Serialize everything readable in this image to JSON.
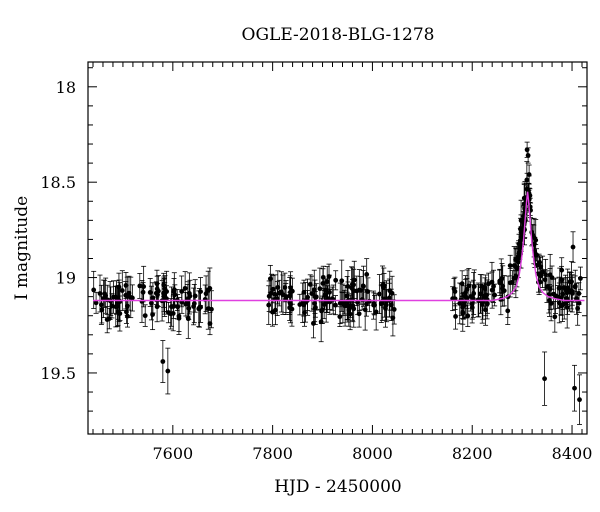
{
  "chart_data": {
    "type": "scatter",
    "title": "OGLE-2018-BLG-1278",
    "xlabel": "HJD - 2450000",
    "ylabel": "I magnitude",
    "xlim": [
      7430,
      8430
    ],
    "ylim": [
      19.82,
      17.87
    ],
    "y_inverted": true,
    "x_ticks": [
      7600,
      7800,
      8000,
      8200,
      8400
    ],
    "x_tick_labels": [
      "7600",
      "7800",
      "8000",
      "8200",
      "8400"
    ],
    "y_ticks": [
      18,
      18.5,
      19,
      19.5
    ],
    "y_tick_labels": [
      "18",
      "18.5",
      "19",
      "19.5"
    ],
    "baseline_mag": 19.12,
    "model": {
      "color": "#e040e0",
      "peak_time": 8311,
      "peak_mag": 18.55,
      "width_days": 16,
      "points": [
        [
          7440,
          19.12
        ],
        [
          8200,
          19.12
        ],
        [
          8240,
          19.12
        ],
        [
          8260,
          19.11
        ],
        [
          8270,
          19.1
        ],
        [
          8280,
          19.08
        ],
        [
          8288,
          19.05
        ],
        [
          8294,
          18.99
        ],
        [
          8299,
          18.9
        ],
        [
          8303,
          18.8
        ],
        [
          8306,
          18.7
        ],
        [
          8309,
          18.6
        ],
        [
          8311,
          18.55
        ],
        [
          8313,
          18.6
        ],
        [
          8316,
          18.7
        ],
        [
          8319,
          18.8
        ],
        [
          8323,
          18.9
        ],
        [
          8328,
          18.99
        ],
        [
          8334,
          19.05
        ],
        [
          8342,
          19.08
        ],
        [
          8352,
          19.1
        ],
        [
          8365,
          19.11
        ],
        [
          8385,
          19.12
        ],
        [
          8425,
          19.12
        ]
      ]
    },
    "data_color": "#000000",
    "seasons": [
      {
        "start": 7440,
        "end": 7680,
        "n": 95
      },
      {
        "start": 7790,
        "end": 8045,
        "n": 120
      },
      {
        "start": 8160,
        "end": 8420,
        "n": 140
      }
    ],
    "outliers": [
      {
        "x": 7590,
        "y": 19.49,
        "err": 0.12
      },
      {
        "x": 7580,
        "y": 19.44,
        "err": 0.11
      },
      {
        "x": 8345,
        "y": 19.53,
        "err": 0.14
      },
      {
        "x": 8405,
        "y": 19.58,
        "err": 0.12
      },
      {
        "x": 8415,
        "y": 19.64,
        "err": 0.13
      },
      {
        "x": 8402,
        "y": 18.84,
        "err": 0.08
      },
      {
        "x": 8310,
        "y": 18.33,
        "err": 0.04
      },
      {
        "x": 8312,
        "y": 18.36,
        "err": 0.04
      },
      {
        "x": 8314,
        "y": 18.46,
        "err": 0.05
      }
    ]
  }
}
